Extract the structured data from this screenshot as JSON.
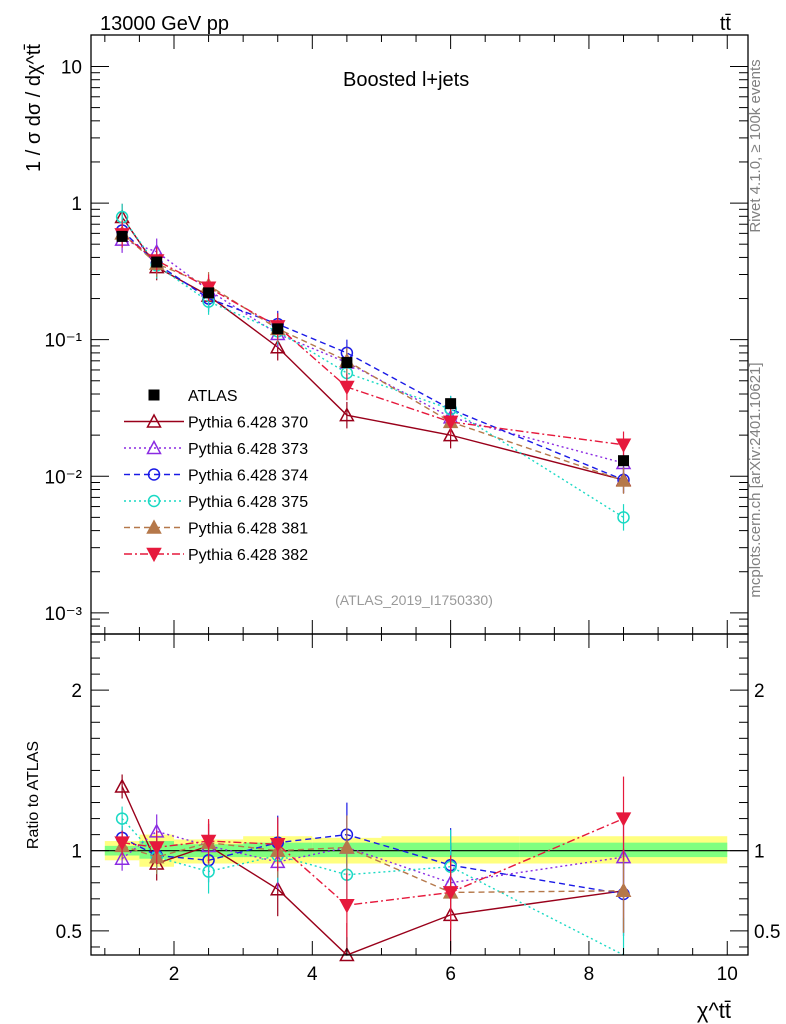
{
  "header": {
    "left": "13000 GeV pp",
    "right": "tt̄",
    "side_top": "Rivet 4.1.0, ≥ 100k events",
    "side_bottom": "mcplots.cern.ch [arXiv:2401.10621]"
  },
  "chart_data": [
    {
      "type": "line",
      "panel": "main",
      "title": "Boosted l+jets",
      "annotation": "(ATLAS_2019_I1750330)",
      "ylabel": "1 / σ dσ / dχ^tt̄",
      "yscale": "log",
      "ylim": [
        0.0007,
        17
      ],
      "xlim": [
        0.8,
        10.3
      ],
      "ytick_labels": [
        "10",
        "1",
        "10⁻¹",
        "10⁻²",
        "10⁻³"
      ],
      "legend_position": "left-middle",
      "series": [
        {
          "name": "ATLAS",
          "color": "#000000",
          "marker": "square",
          "x": [
            1.25,
            1.75,
            2.5,
            3.5,
            4.5,
            6.0,
            8.5
          ],
          "y": [
            0.57,
            0.37,
            0.22,
            0.12,
            0.068,
            0.034,
            0.013
          ]
        },
        {
          "name": "Pythia 6.428 370",
          "color": "#99001a",
          "marker": "triangle-up-open",
          "dash": "solid",
          "x": [
            1.25,
            1.75,
            2.5,
            3.5,
            4.5,
            6.0,
            8.5
          ],
          "y": [
            0.79,
            0.34,
            0.21,
            0.088,
            0.028,
            0.02,
            0.0094
          ]
        },
        {
          "name": "Pythia 6.428 373",
          "color": "#8b2be2",
          "marker": "triangle-up-open",
          "dash": "dotted",
          "x": [
            1.25,
            1.75,
            2.5,
            3.5,
            4.5,
            6.0,
            8.5
          ],
          "y": [
            0.54,
            0.44,
            0.23,
            0.11,
            0.068,
            0.027,
            0.0125
          ]
        },
        {
          "name": "Pythia 6.428 374",
          "color": "#1a1ae6",
          "marker": "circle-open",
          "dash": "dashed",
          "x": [
            1.25,
            1.75,
            2.5,
            3.5,
            4.5,
            6.0,
            8.5
          ],
          "y": [
            0.63,
            0.36,
            0.2,
            0.13,
            0.08,
            0.031,
            0.0094
          ]
        },
        {
          "name": "Pythia 6.428 375",
          "color": "#1ad9c4",
          "marker": "circle-open",
          "dash": "dotted",
          "x": [
            1.25,
            1.75,
            2.5,
            3.5,
            4.5,
            6.0,
            8.5
          ],
          "y": [
            0.79,
            0.35,
            0.19,
            0.115,
            0.057,
            0.031,
            0.005
          ]
        },
        {
          "name": "Pythia 6.428 381",
          "color": "#b5784a",
          "marker": "triangle-up-filled",
          "dash": "dashed",
          "x": [
            1.25,
            1.75,
            2.5,
            3.5,
            4.5,
            6.0,
            8.5
          ],
          "y": [
            0.6,
            0.36,
            0.25,
            0.12,
            0.07,
            0.025,
            0.0093
          ]
        },
        {
          "name": "Pythia 6.428 382",
          "color": "#e6193c",
          "marker": "triangle-down-filled",
          "dash": "dashdot",
          "x": [
            1.25,
            1.75,
            2.5,
            3.5,
            4.5,
            6.0,
            8.5
          ],
          "y": [
            0.59,
            0.38,
            0.24,
            0.125,
            0.045,
            0.025,
            0.017
          ]
        }
      ]
    },
    {
      "type": "line",
      "panel": "ratio",
      "ylabel": "Ratio to ATLAS",
      "xlabel": "χ^tt̄",
      "ylim": [
        0.35,
        2.35
      ],
      "xlim": [
        0.8,
        10.3
      ],
      "ytick_labels": [
        "0.5",
        "1",
        "2"
      ],
      "xtick_labels": [
        "2",
        "4",
        "6",
        "8",
        "10"
      ],
      "band_inner_color": "#80ff80",
      "band_outer_color": "#ffff80",
      "bands": [
        {
          "x0": 1.0,
          "x1": 1.5,
          "inner": [
            0.97,
            1.03
          ],
          "outer": [
            0.94,
            1.06
          ]
        },
        {
          "x0": 1.5,
          "x1": 2.0,
          "inner": [
            0.95,
            1.06
          ],
          "outer": [
            0.9,
            1.1
          ]
        },
        {
          "x0": 2.0,
          "x1": 3.0,
          "inner": [
            0.96,
            1.04
          ],
          "outer": [
            0.92,
            1.07
          ]
        },
        {
          "x0": 3.0,
          "x1": 4.0,
          "inner": [
            0.96,
            1.05
          ],
          "outer": [
            0.92,
            1.09
          ]
        },
        {
          "x0": 4.0,
          "x1": 5.0,
          "inner": [
            0.96,
            1.05
          ],
          "outer": [
            0.92,
            1.08
          ]
        },
        {
          "x0": 5.0,
          "x1": 7.0,
          "inner": [
            0.96,
            1.05
          ],
          "outer": [
            0.92,
            1.09
          ]
        },
        {
          "x0": 7.0,
          "x1": 10.0,
          "inner": [
            0.96,
            1.05
          ],
          "outer": [
            0.92,
            1.09
          ]
        }
      ],
      "series": [
        {
          "name": "Pythia 6.428 370",
          "y": [
            1.4,
            0.92,
            1.03,
            0.76,
            0.35,
            0.6,
            0.75
          ]
        },
        {
          "name": "Pythia 6.428 373",
          "y": [
            0.95,
            1.12,
            1.03,
            0.93,
            1.02,
            0.8,
            0.96
          ]
        },
        {
          "name": "Pythia 6.428 374",
          "y": [
            1.08,
            0.97,
            0.94,
            1.05,
            1.1,
            0.91,
            0.73
          ]
        },
        {
          "name": "Pythia 6.428 375",
          "y": [
            1.2,
            0.96,
            0.87,
            0.97,
            0.85,
            0.9,
            0.32
          ]
        },
        {
          "name": "Pythia 6.428 381",
          "y": [
            1.03,
            0.96,
            1.05,
            1.0,
            1.02,
            0.74,
            0.75
          ]
        },
        {
          "name": "Pythia 6.428 382",
          "y": [
            1.05,
            1.02,
            1.06,
            1.04,
            0.66,
            0.74,
            1.2
          ]
        }
      ]
    }
  ]
}
